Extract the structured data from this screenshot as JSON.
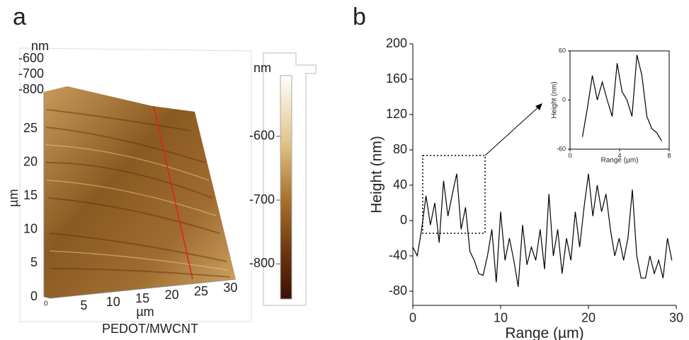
{
  "panels": {
    "a": "a",
    "b": "b"
  },
  "image": {
    "z_unit": "nm",
    "z_ticks": [
      -600,
      -700,
      -800
    ],
    "y_unit": "µm",
    "y_ticks": [
      0,
      5,
      10,
      15,
      20,
      25
    ],
    "x_unit": "µm",
    "x_ticks": [
      5,
      10,
      15,
      20,
      25,
      30
    ],
    "origin_sub": "0",
    "caption": "PEDOT/MWCNT",
    "colorbar": {
      "unit": "nm",
      "lim": [
        -855,
        -505
      ],
      "ticks": [
        -600,
        -700,
        -800
      ]
    }
  },
  "chart_data": [
    {
      "type": "line",
      "xlabel": "Range (µm)",
      "ylabel": "Height (nm)",
      "xlim": [
        0,
        30
      ],
      "xticks": [
        0,
        10,
        20,
        30
      ],
      "ylim": [
        -96,
        200
      ],
      "yticks": [
        -80,
        -40,
        0,
        40,
        80,
        120,
        160,
        200
      ],
      "series": [
        {
          "color": "#000000",
          "x": [
            0,
            0.5,
            1,
            1.5,
            2,
            2.5,
            3,
            3.5,
            4,
            4.5,
            5,
            5.5,
            6,
            6.5,
            7,
            7.5,
            8,
            8.5,
            9,
            9.5,
            10,
            10.5,
            11,
            11.5,
            12,
            12.5,
            13,
            13.5,
            14,
            14.5,
            15,
            15.5,
            16,
            16.5,
            17,
            17.5,
            18,
            18.5,
            19,
            19.5,
            20,
            20.5,
            21,
            21.5,
            22,
            22.5,
            23,
            23.5,
            24,
            24.5,
            25,
            25.5,
            26,
            26.5,
            27,
            27.5,
            28,
            28.5,
            29,
            29.5
          ],
          "values": [
            -30,
            -40,
            -10,
            28,
            -5,
            20,
            -25,
            45,
            5,
            30,
            53,
            -10,
            15,
            -35,
            -45,
            -60,
            -62,
            -40,
            -10,
            -70,
            10,
            -45,
            -20,
            -45,
            -75,
            -5,
            -50,
            -30,
            -45,
            -10,
            -55,
            30,
            -40,
            -10,
            -60,
            -20,
            -45,
            10,
            -30,
            15,
            53,
            5,
            40,
            10,
            30,
            -10,
            -40,
            -20,
            -45,
            -20,
            35,
            -40,
            -65,
            -65,
            -40,
            -60,
            -45,
            -65,
            -20,
            -45
          ]
        }
      ]
    },
    {
      "type": "line",
      "xlabel": "Range (µm)",
      "ylabel": "Height (nm)",
      "xlim": [
        0,
        8
      ],
      "xticks": [
        0,
        4,
        8
      ],
      "ylim": [
        -60,
        60
      ],
      "yticks": [
        -60,
        0,
        60
      ],
      "series": [
        {
          "color": "#000000",
          "x": [
            1,
            1.4,
            1.8,
            2.2,
            2.6,
            3,
            3.4,
            3.8,
            4.2,
            4.6,
            5,
            5.4,
            5.8,
            6.2,
            6.6,
            7,
            7.4
          ],
          "values": [
            -45,
            -10,
            30,
            0,
            22,
            0,
            -20,
            45,
            10,
            0,
            -20,
            55,
            30,
            -20,
            -35,
            -40,
            -50
          ]
        }
      ]
    }
  ]
}
